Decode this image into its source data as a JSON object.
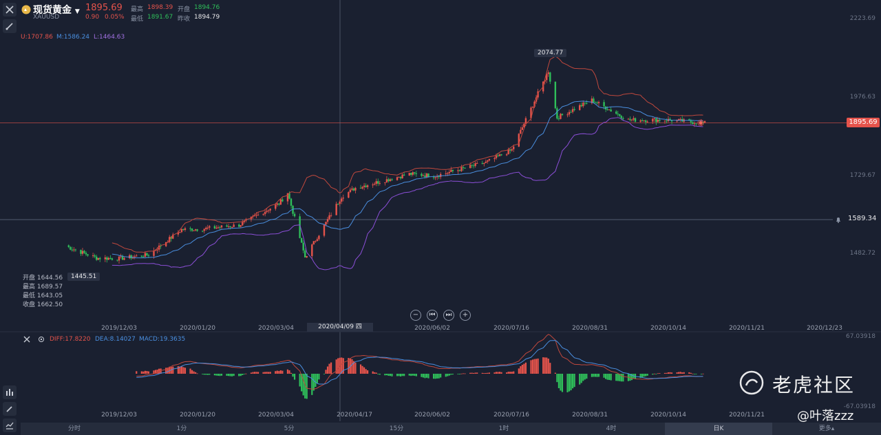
{
  "header": {
    "title": "现货黄金",
    "code": "XAUUSD",
    "price": "1895.69",
    "change": "0.90",
    "change_pct": "0.05%",
    "high_label": "最高",
    "high": "1898.39",
    "open_label": "开盘",
    "open": "1894.76",
    "low_label": "最低",
    "low": "1891.67",
    "prev_label": "昨收",
    "prev": "1894.79"
  },
  "boll": {
    "u": "U:1707.86",
    "m": "M:1586.24",
    "l": "L:1464.63"
  },
  "crosshair_ohlc": {
    "open": "开盘 1644.56",
    "high": "最高 1689.57",
    "low": "最低 1643.05",
    "close": "收盘 1662.50"
  },
  "markers": {
    "max_label": "2074.77",
    "min_label": "1445.51",
    "current_price": "1895.69",
    "alert_price": "1589.34",
    "crosshair_date": "2020/04/09 四"
  },
  "macd_legend": {
    "diff": "DIFF:17.8220",
    "dea": "DEA:8.14027",
    "macd": "MACD:19.3635",
    "top": "67.03918",
    "bottom": "-67.03918"
  },
  "x_labels_main": [
    "2019/12/03",
    "2020/01/20",
    "2020/03/04",
    "2020/06/02",
    "2020/07/16",
    "2020/08/31",
    "2020/10/14",
    "2020/11/21",
    "2020/12/23"
  ],
  "x_labels_macd": [
    "2019/12/03",
    "2020/01/20",
    "2020/03/04",
    "2020/04/17",
    "2020/06/02",
    "2020/07/16",
    "2020/08/31",
    "2020/10/14",
    "2020/11/21"
  ],
  "periods": [
    "分时",
    "1分",
    "5分",
    "15分",
    "1时",
    "4时",
    "日K",
    "更多▴"
  ],
  "watermark": {
    "brand": "老虎社区",
    "user": "@叶落zzz"
  },
  "colors": {
    "up": "#e5534b",
    "down": "#2fbf5a",
    "upper": "#c0483d",
    "mid": "#4a8fe0",
    "lower": "#8c4fd8"
  },
  "chart_data": {
    "type": "candlestick",
    "title": "",
    "y_ticks": [
      2223.69,
      1976.63,
      1729.67,
      1482.72
    ],
    "ylim": [
      1400,
      2230
    ],
    "close_series": [
      {
        "date": "2019-11-01",
        "close": 1508
      },
      {
        "date": "2019-11-20",
        "close": 1468
      },
      {
        "date": "2019-12-03",
        "close": 1466
      },
      {
        "date": "2019-12-20",
        "close": 1478
      },
      {
        "date": "2020-01-08",
        "close": 1558
      },
      {
        "date": "2020-01-20",
        "close": 1560
      },
      {
        "date": "2020-02-10",
        "close": 1572
      },
      {
        "date": "2020-03-04",
        "close": 1640
      },
      {
        "date": "2020-03-09",
        "close": 1675
      },
      {
        "date": "2020-03-19",
        "close": 1470
      },
      {
        "date": "2020-04-09",
        "close": 1662
      },
      {
        "date": "2020-04-17",
        "close": 1690
      },
      {
        "date": "2020-05-18",
        "close": 1734
      },
      {
        "date": "2020-06-02",
        "close": 1728
      },
      {
        "date": "2020-07-01",
        "close": 1770
      },
      {
        "date": "2020-07-16",
        "close": 1810
      },
      {
        "date": "2020-08-06",
        "close": 2060
      },
      {
        "date": "2020-08-11",
        "close": 1912
      },
      {
        "date": "2020-08-31",
        "close": 1968
      },
      {
        "date": "2020-09-21",
        "close": 1905
      },
      {
        "date": "2020-10-14",
        "close": 1905
      },
      {
        "date": "2020-11-04",
        "close": 1895
      }
    ]
  }
}
